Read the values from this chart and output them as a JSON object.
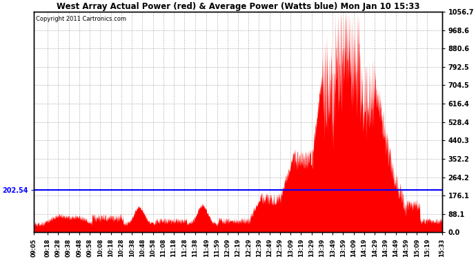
{
  "title": "West Array Actual Power (red) & Average Power (Watts blue) Mon Jan 10 15:33",
  "copyright": "Copyright 2011 Cartronics.com",
  "avg_power": 202.54,
  "ymax": 1056.7,
  "ymin": 0.0,
  "yticks_right": [
    0.0,
    88.1,
    176.1,
    264.2,
    352.2,
    440.3,
    528.4,
    616.4,
    704.5,
    792.5,
    880.6,
    968.6,
    1056.7
  ],
  "bar_color": "#ff0000",
  "avg_line_color": "#0000ff",
  "background_color": "#ffffff",
  "grid_color": "#888888",
  "x_labels": [
    "09:05",
    "09:18",
    "09:28",
    "09:38",
    "09:48",
    "09:58",
    "10:08",
    "10:18",
    "10:28",
    "10:38",
    "10:48",
    "10:58",
    "11:08",
    "11:18",
    "11:28",
    "11:38",
    "11:49",
    "11:59",
    "12:09",
    "12:19",
    "12:29",
    "12:39",
    "12:49",
    "12:59",
    "13:09",
    "13:19",
    "13:29",
    "13:39",
    "13:49",
    "13:59",
    "14:09",
    "14:19",
    "14:29",
    "14:39",
    "14:49",
    "14:59",
    "15:09",
    "15:19",
    "15:33"
  ]
}
